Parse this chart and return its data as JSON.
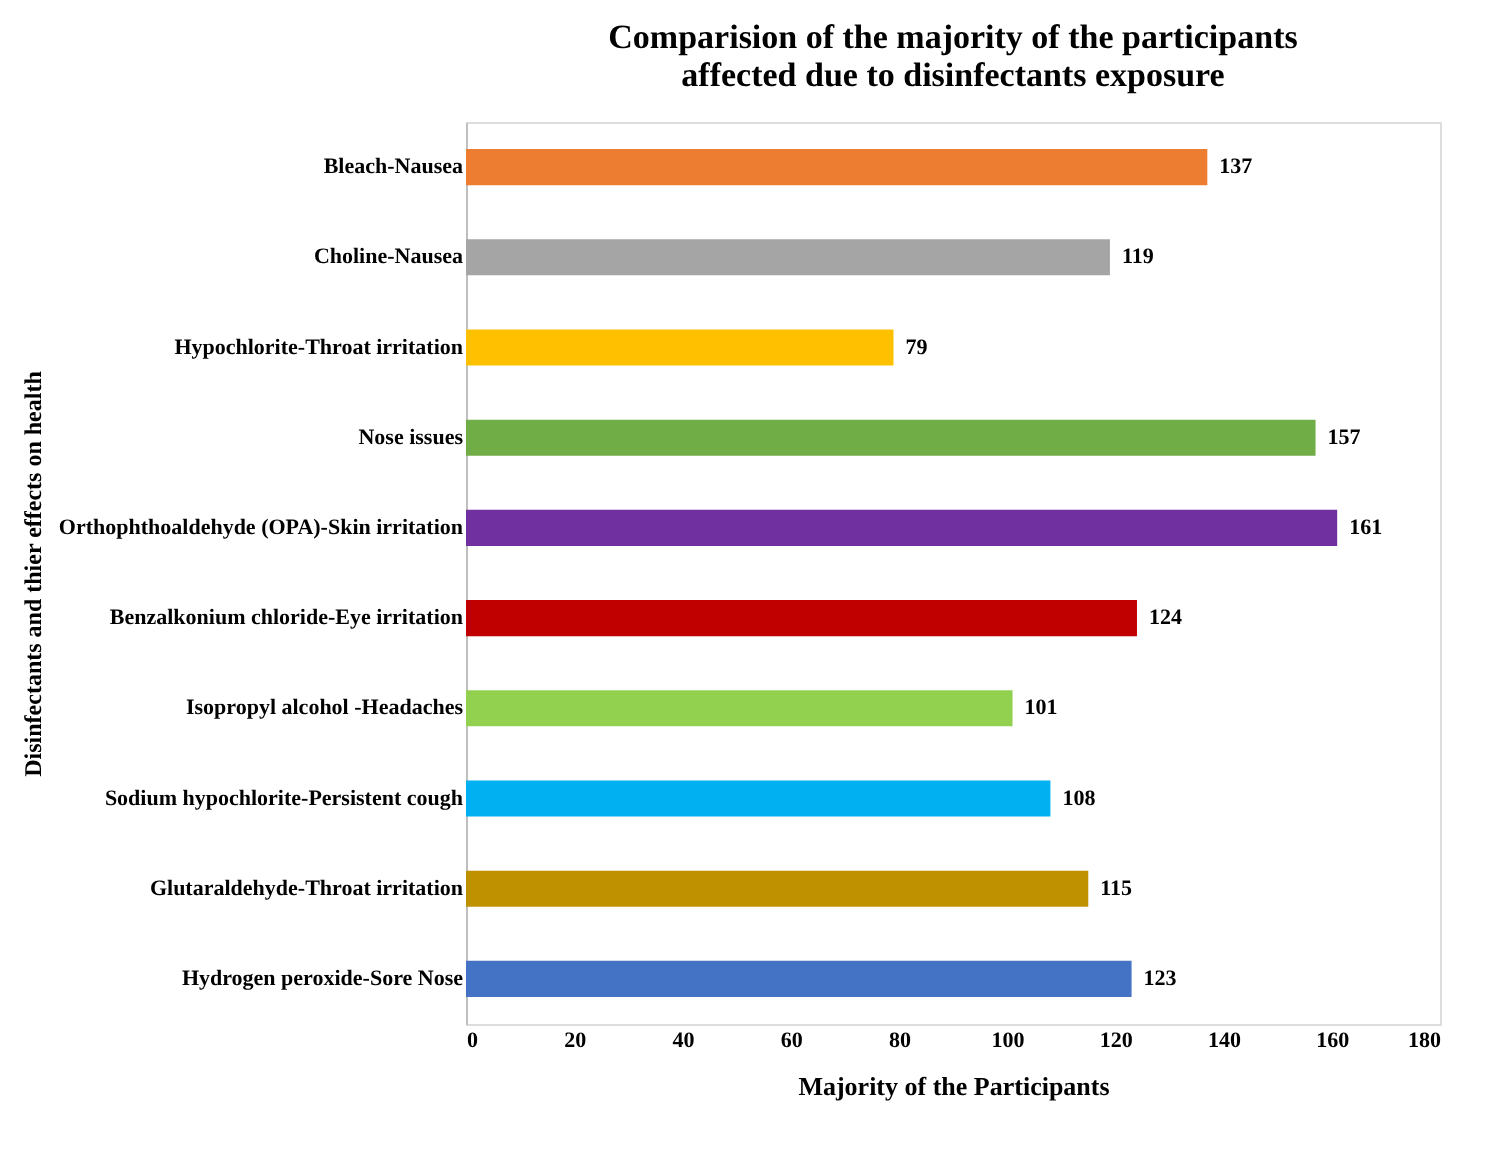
{
  "chart_data": {
    "type": "bar",
    "orientation": "horizontal",
    "title": "Comparision of the majority of the participants affected due to disinfectants exposure",
    "xlabel": "Majority of the Participants",
    "ylabel": "Disinfectants and thier effects on health",
    "categories": [
      "Bleach-Nausea",
      "Choline-Nausea",
      "Hypochlorite-Throat irritation",
      "Nose issues",
      "Orthophthoaldehyde (OPA)-Skin irritation",
      "Benzalkonium chloride-Eye irritation",
      "Isopropyl alcohol -Headaches",
      "Sodium hypochlorite-Persistent cough",
      "Glutaraldehyde-Throat irritation",
      "Hydrogen peroxide-Sore Nose"
    ],
    "values": [
      137,
      119,
      79,
      157,
      161,
      124,
      101,
      108,
      115,
      123
    ],
    "colors": [
      "#ed7d31",
      "#a5a5a5",
      "#ffc000",
      "#70ad47",
      "#7030a0",
      "#c00000",
      "#92d050",
      "#00b0f0",
      "#bf9000",
      "#4472c4"
    ],
    "xlim": [
      0,
      180
    ],
    "xticks": [
      0,
      20,
      40,
      60,
      80,
      100,
      120,
      140,
      160,
      180
    ],
    "grid": false,
    "data_labels": true
  }
}
